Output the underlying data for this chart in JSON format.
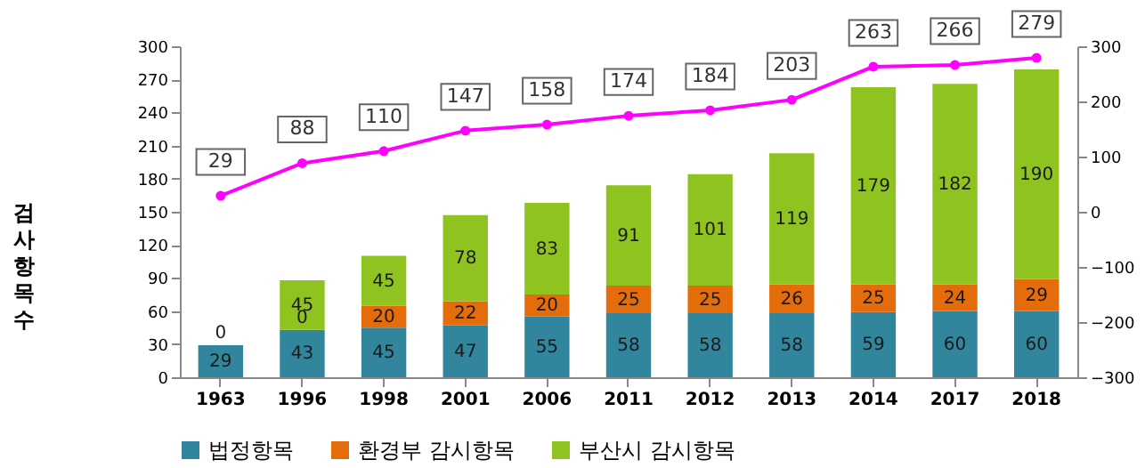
{
  "chart_data": {
    "type": "bar",
    "stacked": true,
    "ylabel": "검사항목수",
    "categories": [
      "1963",
      "1996",
      "1998",
      "2001",
      "2006",
      "2011",
      "2012",
      "2013",
      "2014",
      "2017",
      "2018"
    ],
    "series": [
      {
        "name": "법정항목",
        "color": "#31859c",
        "values": [
          29,
          43,
          45,
          47,
          55,
          58,
          58,
          58,
          59,
          60,
          60
        ],
        "value_labels": [
          "29",
          "43",
          "45",
          "47",
          "55",
          "58",
          "58",
          "58",
          "59",
          "60",
          "60"
        ]
      },
      {
        "name": "환경부 감시항목",
        "color": "#e46c0a",
        "values": [
          0,
          0,
          20,
          22,
          20,
          25,
          25,
          26,
          25,
          24,
          29
        ],
        "value_labels": [
          "0",
          "0",
          "20",
          "22",
          "20",
          "25",
          "25",
          "26",
          "25",
          "24",
          "29"
        ]
      },
      {
        "name": "부산시 감시항목",
        "color": "#8fc31f",
        "values": [
          0,
          45,
          45,
          78,
          83,
          91,
          101,
          119,
          179,
          182,
          190
        ],
        "value_labels": [
          null,
          "45",
          "45",
          "78",
          "83",
          "91",
          "101",
          "119",
          "179",
          "182",
          "190"
        ]
      },
      {
        "type": "line",
        "axis": "y2",
        "color": "#ff00ff",
        "values": [
          29,
          88,
          110,
          147,
          158,
          174,
          184,
          203,
          263,
          266,
          279
        ],
        "value_labels": [
          "29",
          "88",
          "110",
          "147",
          "158",
          "174",
          "184",
          "203",
          "263",
          "266",
          "279"
        ]
      }
    ],
    "ylim": [
      0,
      300
    ],
    "yticks": [
      0,
      30,
      60,
      90,
      120,
      150,
      180,
      210,
      240,
      270,
      300
    ],
    "y2lim": [
      -300,
      300
    ],
    "y2ticks": [
      -300,
      -200,
      -100,
      0,
      100,
      200,
      300
    ],
    "marker": "circle",
    "legend": "bottom",
    "grid": false
  }
}
